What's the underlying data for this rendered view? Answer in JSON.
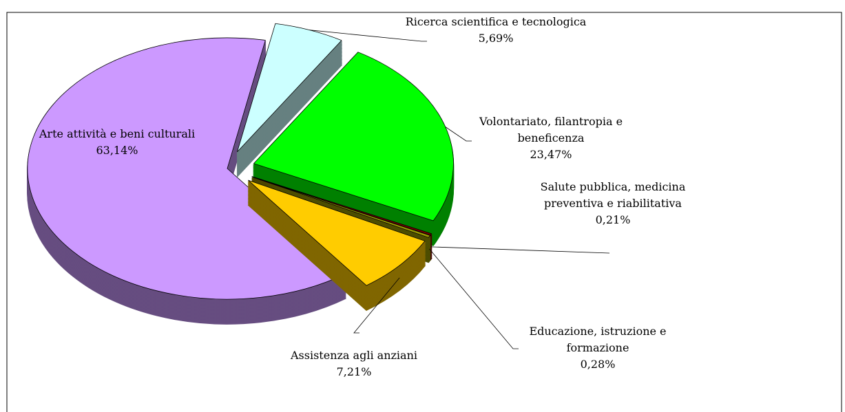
{
  "chart_data": {
    "type": "pie",
    "categories": [
      "Ricerca scientifica e tecnologica",
      "Volontariato, filantropia e beneficenza",
      "Salute pubblica, medicina preventiva e riabilitativa",
      "Educazione, istruzione e formazione",
      "Assistenza agli anziani",
      "Arte attività e beni culturali"
    ],
    "values": [
      5.69,
      23.47,
      0.21,
      0.28,
      7.21,
      63.14
    ],
    "value_labels": [
      "5,69%",
      "23,47%",
      "0,21%",
      "0,28%",
      "7,21%",
      "63,14%"
    ],
    "colors": [
      "#ccffff",
      "#00ff00",
      "#800000",
      "#999900",
      "#ffcc00",
      "#cc99ff"
    ],
    "three_d": true
  }
}
